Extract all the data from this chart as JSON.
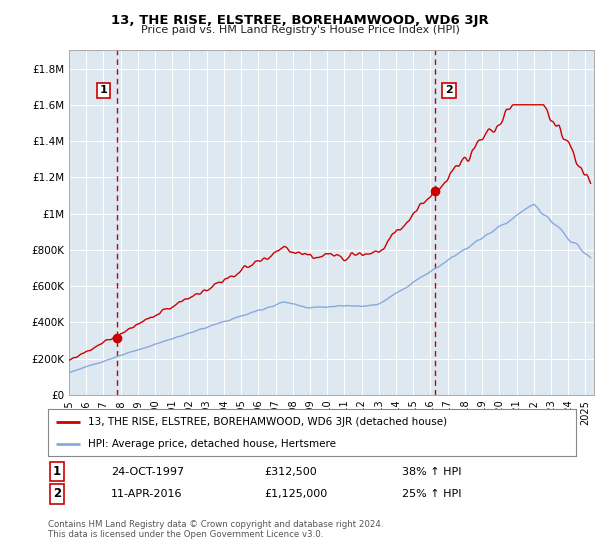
{
  "title": "13, THE RISE, ELSTREE, BOREHAMWOOD, WD6 3JR",
  "subtitle": "Price paid vs. HM Land Registry's House Price Index (HPI)",
  "yticks": [
    0,
    200000,
    400000,
    600000,
    800000,
    1000000,
    1200000,
    1400000,
    1600000,
    1800000
  ],
  "ylim": [
    0,
    1900000
  ],
  "xlim_start": 1995.0,
  "xlim_end": 2025.5,
  "sale1_x": 1997.81,
  "sale1_y": 312500,
  "sale2_x": 2016.27,
  "sale2_y": 1125000,
  "line_color_red": "#cc0000",
  "line_color_blue": "#88aadd",
  "vline_color": "#cc0000",
  "bg_color": "#ffffff",
  "plot_bg_color": "#dde8f0",
  "grid_color": "#ffffff",
  "legend_label_red": "13, THE RISE, ELSTREE, BOREHAMWOOD, WD6 3JR (detached house)",
  "legend_label_blue": "HPI: Average price, detached house, Hertsmere",
  "sale1_date": "24-OCT-1997",
  "sale1_price": "£312,500",
  "sale1_hpi": "38% ↑ HPI",
  "sale2_date": "11-APR-2016",
  "sale2_price": "£1,125,000",
  "sale2_hpi": "25% ↑ HPI",
  "footer": "Contains HM Land Registry data © Crown copyright and database right 2024.\nThis data is licensed under the Open Government Licence v3.0.",
  "x_tick_years": [
    1995,
    1996,
    1997,
    1998,
    1999,
    2000,
    2001,
    2002,
    2003,
    2004,
    2005,
    2006,
    2007,
    2008,
    2009,
    2010,
    2011,
    2012,
    2013,
    2014,
    2015,
    2016,
    2017,
    2018,
    2019,
    2020,
    2021,
    2022,
    2023,
    2024,
    2025
  ]
}
